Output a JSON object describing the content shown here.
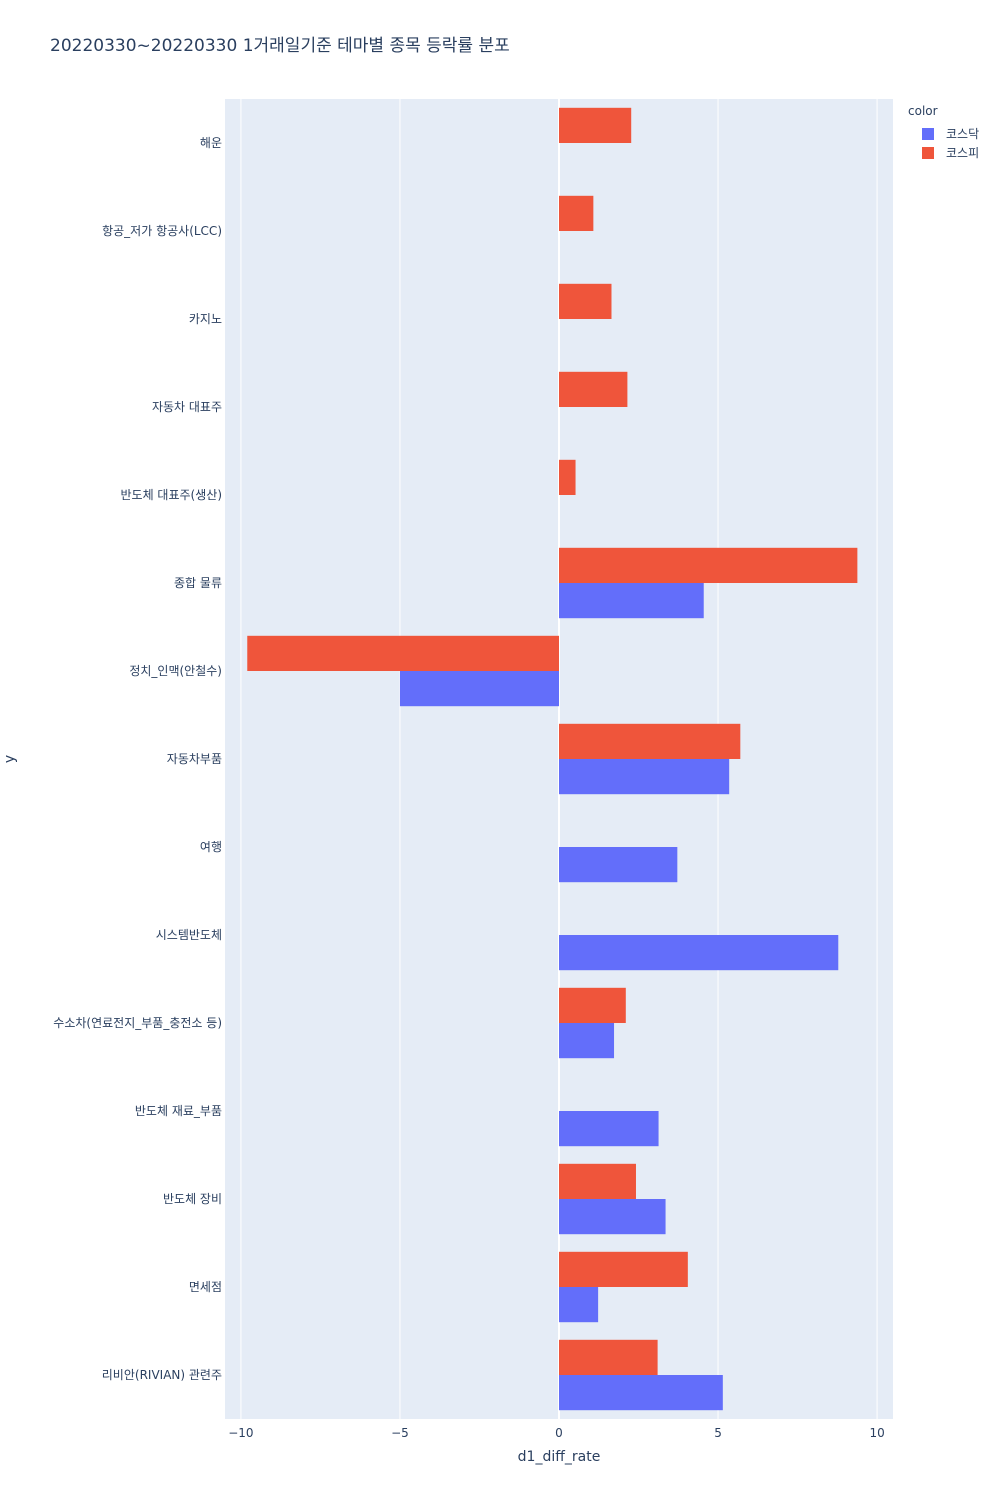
{
  "chart_data": {
    "type": "bar",
    "orientation": "horizontal",
    "barmode": "group",
    "title": "20220330~20220330 1거래일기준 테마별 종목 등락률 분포",
    "xlabel": "d1_diff_rate",
    "ylabel": "y",
    "xlim": [
      -10.5,
      10.5
    ],
    "x_ticks": [
      -10,
      -5,
      0,
      5,
      10
    ],
    "x_tick_labels": [
      "−10",
      "−5",
      "0",
      "5",
      "10"
    ],
    "grid": true,
    "legend_title": "color",
    "legend_position": "top-right",
    "categories": [
      "해운",
      "항공_저가 항공사(LCC)",
      "카지노",
      "자동차 대표주",
      "반도체 대표주(생산)",
      "종합 물류",
      "정치_인맥(안철수)",
      "자동차부품",
      "여행",
      "시스템반도체",
      "수소차(연료전지_부품_충전소 등)",
      "반도체 재료_부품",
      "반도체 장비",
      "면세점",
      "리비안(RIVIAN) 관련주"
    ],
    "series": [
      {
        "name": "코스닥",
        "color": "#636efa",
        "values": [
          null,
          null,
          null,
          null,
          null,
          4.55,
          -5.0,
          5.35,
          3.72,
          8.78,
          1.73,
          3.13,
          3.35,
          1.23,
          5.15
        ]
      },
      {
        "name": "코스피",
        "color": "#ef553b",
        "values": [
          2.27,
          1.08,
          1.65,
          2.15,
          0.52,
          9.38,
          -9.8,
          5.7,
          null,
          null,
          2.1,
          null,
          2.42,
          4.05,
          3.1
        ]
      }
    ]
  }
}
